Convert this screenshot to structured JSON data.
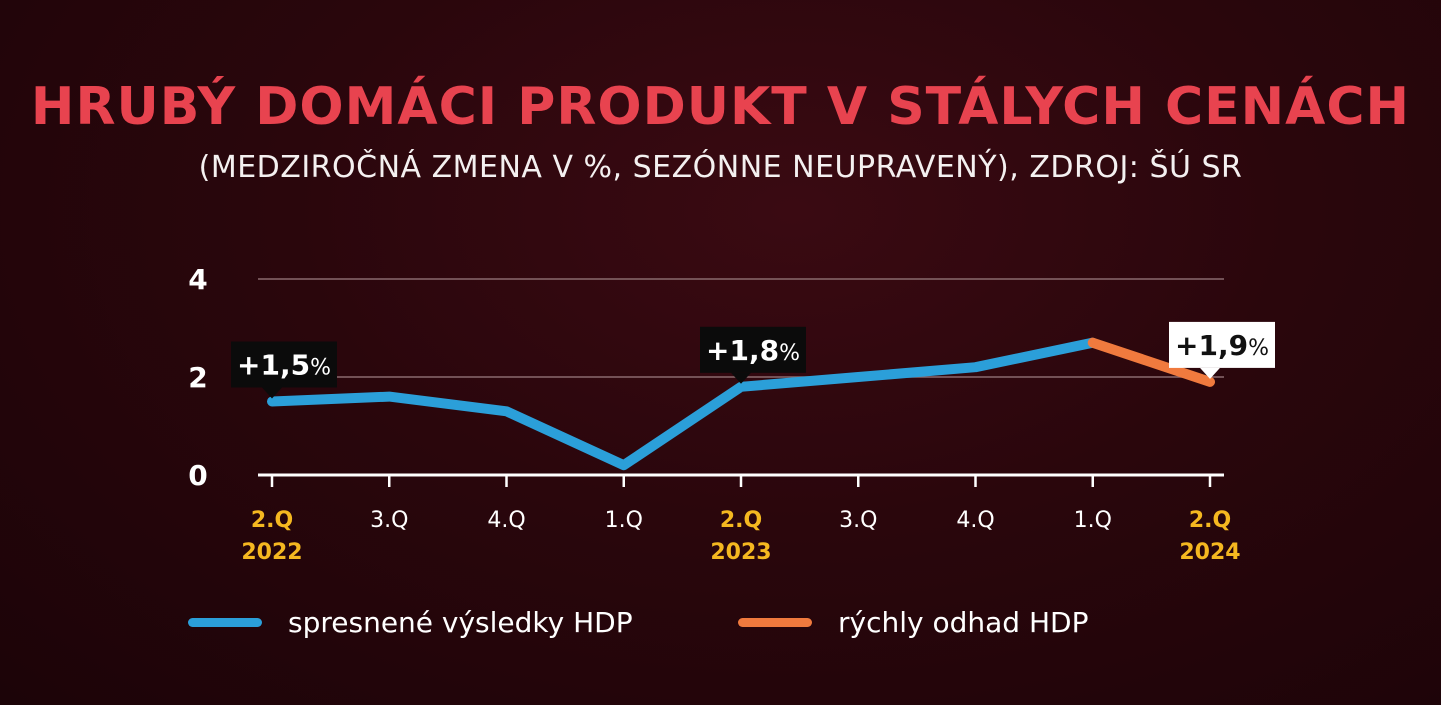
{
  "title": "HRUBÝ DOMÁCI PRODUKT V STÁLYCH CENÁCH",
  "subtitle": "(MEDZIROČNÁ ZMENA V %, SEZÓNNE NEUPRAVENÝ), ZDROJ: ŠÚ SR",
  "colors": {
    "title": "#e8434f",
    "series_blue": "#2b9fd9",
    "series_orange": "#f07a3e",
    "year_label": "#f5b820",
    "quarter_label": "#ffffff",
    "gridline": "#8a6a6e"
  },
  "chart_data": {
    "type": "line",
    "ylim": [
      0,
      4
    ],
    "yticks": [
      0,
      2,
      4
    ],
    "grid": true,
    "x": [
      {
        "quarter": "2.Q",
        "year": "2022"
      },
      {
        "quarter": "3.Q",
        "year": ""
      },
      {
        "quarter": "4.Q",
        "year": ""
      },
      {
        "quarter": "1.Q",
        "year": ""
      },
      {
        "quarter": "2.Q",
        "year": "2023"
      },
      {
        "quarter": "3.Q",
        "year": ""
      },
      {
        "quarter": "4.Q",
        "year": ""
      },
      {
        "quarter": "1.Q",
        "year": ""
      },
      {
        "quarter": "2.Q",
        "year": "2024"
      }
    ],
    "series": [
      {
        "name": "spresnené výsledky HDP",
        "color": "#2b9fd9",
        "values": [
          1.5,
          1.6,
          1.3,
          0.2,
          1.8,
          2.0,
          2.2,
          2.7,
          null
        ]
      },
      {
        "name": "rýchly odhad HDP",
        "color": "#f07a3e",
        "values": [
          null,
          null,
          null,
          null,
          null,
          null,
          null,
          2.7,
          1.9
        ]
      }
    ],
    "annotations": [
      {
        "index": 0,
        "number": "+1,5",
        "unit": "%",
        "style": "dark"
      },
      {
        "index": 4,
        "number": "+1,8",
        "unit": "%",
        "style": "dark"
      },
      {
        "index": 8,
        "number": "+1,9",
        "unit": "%",
        "style": "light"
      }
    ],
    "legend": "bottom"
  }
}
